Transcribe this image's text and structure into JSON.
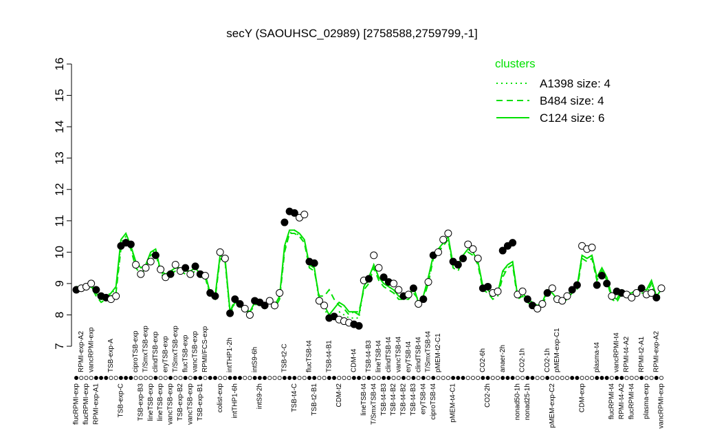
{
  "chart_data": {
    "type": "line",
    "title": "secY (SAOUHSC_02989) [2758588,2759799,-1]",
    "ylim": [
      7,
      16
    ],
    "yticks": [
      7,
      8,
      9,
      10,
      11,
      12,
      13,
      14,
      15,
      16
    ],
    "legend_title": "clusters",
    "legend_position": "top-right",
    "categories": [
      "flucRPMI-exp",
      "RPMI-exp-A2",
      "flucRPMI-exp",
      "vancRPMI-exp",
      "RPMI-exp-A1",
      null,
      null,
      "TSB-exp-A",
      null,
      "TSB-exp-C",
      null,
      null,
      "ciproTSB-exp",
      "TSB-exp-B3",
      "T/SmxTSB-exp",
      "lineTSB-exp",
      "clindTSB-exp",
      "lineTSB-exp",
      "eryTSB-exp",
      "vancTSB-exp",
      "T/SmxTSB-exp",
      "TSB-exp-B2",
      "flucTSB-exp",
      "vancTSB-exp",
      "vancTSB-exp",
      "TSB-exp-B1",
      "RPMI/FCS-exp",
      null,
      null,
      "colist-exp",
      null,
      "intTHP1-2h",
      "intTHP1-6h",
      null,
      null,
      null,
      "intS9-6h",
      "intS9-2h",
      null,
      null,
      null,
      null,
      "TSB-t2-C",
      null,
      "TSB-t4-C",
      null,
      null,
      "flucTSB-t4",
      "TSB-t2-B1",
      null,
      null,
      "TSB-t4-B1",
      null,
      "CDM-t2",
      null,
      null,
      "CDM-t4",
      null,
      "lineTSB-t4",
      "TSB-t4-B3",
      "T/SmxTSB-t4",
      "lineTSB-t4",
      "TSB-t4-B3",
      "clindTSB-t4",
      "TSB-t4-B2",
      "vancTSB-t4",
      "TSB-t4-B2",
      "eryTSB-t4",
      "TSB-t4-B3",
      "clindTSB-t4",
      "eryTSB-t4",
      "T/SmxTSB-t4",
      "ciproTSB-t4",
      "pMEM-t2-C1",
      null,
      null,
      "pMEM-t4-C1",
      null,
      null,
      null,
      null,
      null,
      "CO2-6h",
      "CO2-2h",
      null,
      null,
      "anaer-2h",
      null,
      null,
      "nonad50-1h",
      "CO2-1h",
      "nonad25-1h",
      null,
      null,
      null,
      "CO2-1h",
      "pMEM-exp-C2",
      "pMEM-exp-C1",
      null,
      null,
      null,
      null,
      "CDM-exp",
      null,
      null,
      "plasma-t4",
      null,
      null,
      "flucRPMI-t4",
      "vancRPMI-t4",
      "RPMI-t4-A2",
      "RPMI-t4-A2",
      "flucRPMI-t4",
      null,
      "RPMI-t2-A1",
      "plasma-exp",
      null,
      "RPMI-exp-A2",
      "vancRPMI-exp"
    ],
    "points": {
      "values": [
        8.8,
        8.85,
        8.9,
        9.0,
        8.8,
        8.6,
        8.55,
        8.5,
        8.6,
        10.2,
        10.3,
        10.25,
        9.6,
        9.3,
        9.5,
        9.7,
        9.9,
        9.45,
        9.2,
        9.3,
        9.6,
        9.4,
        9.5,
        9.3,
        9.55,
        9.3,
        9.25,
        8.7,
        8.6,
        10.0,
        9.8,
        8.05,
        8.5,
        8.35,
        8.2,
        8.0,
        8.45,
        8.4,
        8.3,
        8.45,
        8.3,
        8.7,
        10.95,
        11.3,
        11.25,
        11.1,
        11.2,
        9.7,
        9.65,
        8.45,
        8.3,
        7.9,
        7.95,
        7.85,
        7.8,
        7.75,
        7.7,
        7.65,
        9.1,
        9.15,
        9.9,
        9.5,
        9.2,
        9.05,
        9.0,
        8.8,
        8.6,
        8.65,
        8.85,
        8.35,
        8.5,
        9.05,
        9.9,
        10.0,
        10.4,
        10.6,
        9.7,
        9.6,
        9.8,
        10.25,
        10.1,
        9.8,
        8.85,
        8.9,
        8.7,
        8.75,
        10.05,
        10.2,
        10.3,
        8.65,
        8.75,
        8.5,
        8.3,
        8.2,
        8.35,
        8.7,
        8.85,
        8.5,
        8.45,
        8.6,
        8.8,
        8.95,
        10.2,
        10.1,
        10.15,
        8.95,
        9.25,
        9.0,
        8.6,
        8.75,
        8.7,
        8.65,
        8.55,
        8.7,
        8.85,
        8.65,
        8.7,
        8.55,
        8.85
      ],
      "filled": [
        true,
        false,
        false,
        false,
        true,
        true,
        true,
        false,
        false,
        true,
        true,
        true,
        false,
        false,
        false,
        false,
        true,
        false,
        false,
        true,
        false,
        false,
        true,
        false,
        true,
        true,
        false,
        true,
        true,
        false,
        false,
        true,
        true,
        true,
        false,
        false,
        true,
        true,
        true,
        false,
        false,
        false,
        true,
        true,
        true,
        false,
        false,
        true,
        true,
        false,
        false,
        true,
        true,
        false,
        false,
        false,
        true,
        true,
        false,
        true,
        false,
        false,
        true,
        true,
        false,
        false,
        true,
        false,
        true,
        false,
        true,
        false,
        true,
        false,
        false,
        false,
        true,
        true,
        true,
        false,
        false,
        false,
        true,
        true,
        false,
        false,
        true,
        true,
        true,
        false,
        false,
        true,
        true,
        false,
        false,
        true,
        false,
        false,
        false,
        false,
        true,
        true,
        false,
        false,
        false,
        true,
        true,
        true,
        false,
        true,
        true,
        false,
        false,
        false,
        true,
        false,
        false,
        true,
        false
      ]
    },
    "series": [
      {
        "name": "A1398 size: 4",
        "color": "#00e000",
        "line_style": "dotted",
        "values": [
          8.9,
          8.9,
          8.9,
          9.0,
          8.7,
          8.5,
          8.6,
          8.7,
          8.8,
          10.3,
          10.5,
          10.2,
          9.6,
          9.4,
          9.5,
          9.9,
          10.1,
          9.4,
          9.2,
          9.3,
          9.5,
          9.4,
          9.4,
          9.3,
          9.5,
          9.3,
          9.2,
          8.7,
          8.6,
          9.9,
          9.7,
          8.0,
          8.4,
          8.3,
          8.2,
          8.0,
          8.4,
          8.3,
          8.3,
          8.4,
          8.2,
          8.6,
          10.1,
          10.6,
          10.7,
          10.5,
          10.4,
          9.6,
          9.5,
          8.4,
          8.2,
          7.9,
          8.0,
          8.1,
          8.0,
          7.9,
          7.9,
          7.9,
          8.9,
          9.1,
          9.6,
          9.2,
          9.0,
          8.9,
          8.8,
          8.6,
          8.5,
          8.6,
          8.8,
          8.4,
          8.6,
          9.1,
          9.9,
          10.0,
          10.3,
          10.5,
          9.6,
          9.5,
          9.9,
          10.1,
          10.0,
          9.7,
          8.9,
          8.8,
          8.6,
          8.7,
          9.3,
          9.6,
          9.7,
          8.6,
          8.7,
          8.5,
          8.4,
          8.3,
          8.4,
          8.7,
          8.7,
          8.5,
          8.5,
          8.6,
          8.8,
          8.9,
          9.9,
          9.8,
          9.9,
          9.1,
          9.4,
          9.2,
          8.6,
          8.5,
          8.7,
          8.7,
          8.7,
          8.8,
          8.8,
          8.7,
          9.0,
          8.6,
          8.8
        ]
      },
      {
        "name": "B484 size: 4",
        "color": "#00e000",
        "line_style": "dashed",
        "values": [
          8.8,
          8.8,
          8.9,
          8.9,
          8.6,
          8.4,
          8.5,
          8.6,
          8.7,
          10.1,
          10.4,
          10.1,
          9.5,
          9.3,
          9.5,
          9.9,
          10.0,
          9.3,
          9.2,
          9.3,
          9.4,
          9.4,
          9.3,
          9.3,
          9.4,
          9.2,
          9.2,
          8.6,
          8.5,
          9.8,
          9.7,
          8.1,
          8.5,
          8.3,
          8.1,
          8.1,
          8.3,
          8.4,
          8.2,
          8.3,
          8.2,
          8.5,
          10.0,
          10.6,
          10.6,
          10.5,
          10.3,
          9.5,
          9.4,
          8.6,
          8.6,
          8.8,
          8.5,
          8.3,
          8.2,
          8.0,
          8.1,
          8.1,
          8.8,
          9.0,
          9.5,
          9.1,
          8.9,
          8.8,
          8.7,
          8.5,
          8.5,
          8.5,
          8.7,
          8.5,
          8.5,
          9.0,
          9.8,
          10.0,
          10.2,
          10.4,
          9.5,
          9.4,
          9.8,
          10.0,
          9.9,
          9.6,
          8.8,
          8.7,
          8.5,
          8.6,
          9.2,
          9.5,
          9.6,
          8.5,
          8.6,
          8.4,
          8.3,
          8.2,
          8.3,
          8.7,
          8.6,
          8.4,
          8.4,
          8.5,
          8.7,
          8.8,
          9.8,
          9.7,
          9.8,
          9.1,
          9.4,
          9.1,
          8.5,
          8.4,
          8.7,
          8.6,
          8.6,
          8.7,
          8.7,
          8.7,
          9.0,
          8.5,
          8.7
        ]
      },
      {
        "name": "C124 size: 6",
        "color": "#00e000",
        "line_style": "solid",
        "values": [
          8.85,
          8.9,
          8.85,
          8.9,
          8.7,
          8.5,
          8.5,
          8.7,
          8.9,
          10.4,
          10.6,
          10.2,
          9.7,
          9.5,
          9.6,
          10.0,
          10.1,
          9.4,
          9.3,
          9.4,
          9.5,
          9.5,
          9.4,
          9.4,
          9.5,
          9.3,
          9.3,
          8.7,
          8.6,
          9.9,
          9.8,
          8.1,
          8.4,
          8.3,
          8.2,
          8.1,
          8.4,
          8.4,
          8.3,
          8.4,
          8.3,
          8.6,
          10.2,
          10.7,
          10.7,
          10.6,
          10.4,
          9.6,
          9.5,
          8.5,
          8.3,
          8.0,
          8.2,
          8.4,
          8.3,
          8.1,
          8.1,
          8.0,
          8.9,
          9.2,
          9.6,
          9.2,
          9.0,
          8.9,
          8.8,
          8.6,
          8.5,
          8.6,
          8.9,
          8.4,
          8.6,
          9.2,
          9.9,
          10.1,
          10.3,
          10.5,
          9.6,
          9.6,
          9.9,
          10.1,
          10.0,
          9.7,
          8.9,
          8.8,
          8.6,
          8.7,
          9.4,
          9.6,
          9.7,
          8.6,
          8.7,
          8.5,
          8.4,
          8.3,
          8.4,
          8.8,
          8.7,
          8.5,
          8.5,
          8.6,
          8.8,
          8.9,
          9.9,
          9.8,
          9.9,
          9.2,
          9.5,
          9.2,
          8.6,
          8.5,
          8.8,
          8.7,
          8.7,
          8.8,
          8.8,
          8.8,
          9.1,
          8.6,
          8.8
        ]
      }
    ]
  }
}
